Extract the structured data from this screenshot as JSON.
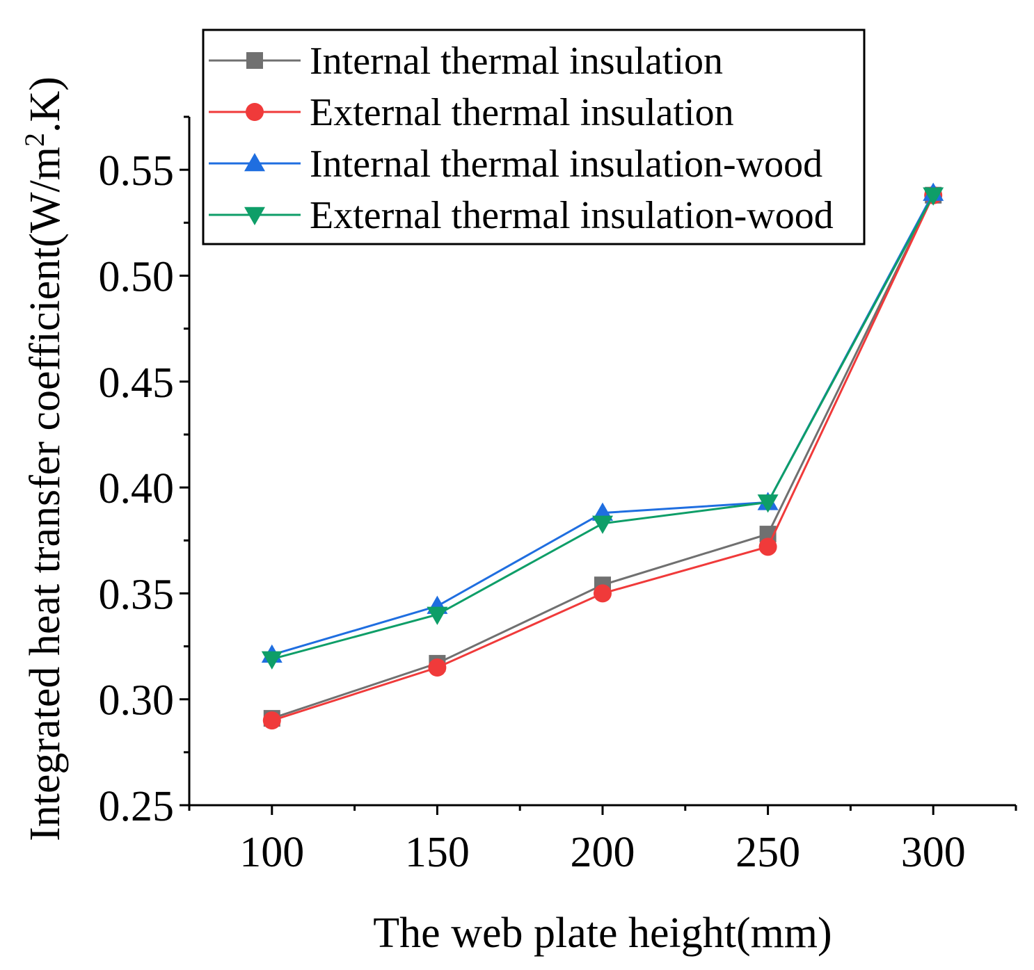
{
  "chart_data": {
    "type": "line",
    "title": "",
    "xlabel": "The web plate height(mm)",
    "ylabel": {
      "main": "Integrated heat transfer coefficient(W/m",
      "superscript": "2",
      "tail": ".K)"
    },
    "x": [
      100,
      150,
      200,
      250,
      300
    ],
    "xlim": [
      75,
      325
    ],
    "ylim": [
      0.25,
      0.575
    ],
    "xticks": [
      "100",
      "150",
      "200",
      "250",
      "300"
    ],
    "yticks": [
      "0.25",
      "0.30",
      "0.35",
      "0.40",
      "0.45",
      "0.50",
      "0.55"
    ],
    "legend_position": "top-left",
    "grid": false,
    "series": [
      {
        "name": "Internal thermal insulation",
        "color": "#707070",
        "marker": "square",
        "values": [
          0.291,
          0.317,
          0.354,
          0.378,
          0.538
        ]
      },
      {
        "name": "External thermal insulation",
        "color": "#f03a3a",
        "marker": "circle",
        "values": [
          0.29,
          0.315,
          0.35,
          0.372,
          0.538
        ]
      },
      {
        "name": "Internal thermal insulation-wood",
        "color": "#1f6ee0",
        "marker": "triangle-up",
        "values": [
          0.321,
          0.344,
          0.388,
          0.393,
          0.539
        ]
      },
      {
        "name": "External thermal insulation-wood",
        "color": "#0e9e68",
        "marker": "triangle-down",
        "values": [
          0.319,
          0.34,
          0.383,
          0.393,
          0.538
        ]
      }
    ]
  }
}
